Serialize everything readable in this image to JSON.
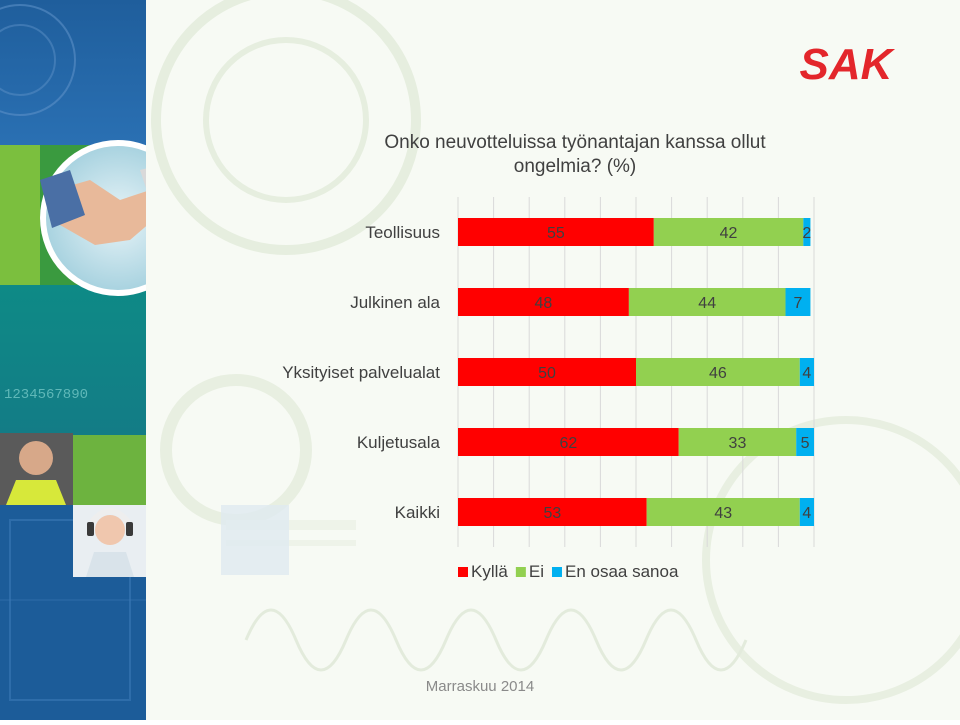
{
  "brand": {
    "logo_text": "SAK",
    "logo_color": "#e3262b"
  },
  "slide": {
    "footer": "Marraskuu 2014"
  },
  "chart_data": {
    "type": "bar",
    "orientation": "horizontal",
    "stacked": true,
    "title": "Onko neuvotteluissa työnantajan kanssa ollut ongelmia? (%)",
    "title_lines": [
      "Onko neuvotteluissa työnantajan kanssa ollut",
      "ongelmia? (%)"
    ],
    "categories": [
      "Teollisuus",
      "Julkinen ala",
      "Yksityiset palvelualat",
      "Kuljetusala",
      "Kaikki"
    ],
    "series": [
      {
        "name": "Kyllä",
        "color": "#ff0000",
        "values": [
          55,
          48,
          50,
          62,
          53
        ]
      },
      {
        "name": "Ei",
        "color": "#92d050",
        "values": [
          42,
          44,
          46,
          33,
          43
        ]
      },
      {
        "name": "En osaa sanoa",
        "color": "#00b0f0",
        "values": [
          2,
          7,
          4,
          5,
          4
        ]
      }
    ],
    "xlim": [
      0,
      100
    ],
    "grid": true,
    "legend_position": "bottom"
  }
}
